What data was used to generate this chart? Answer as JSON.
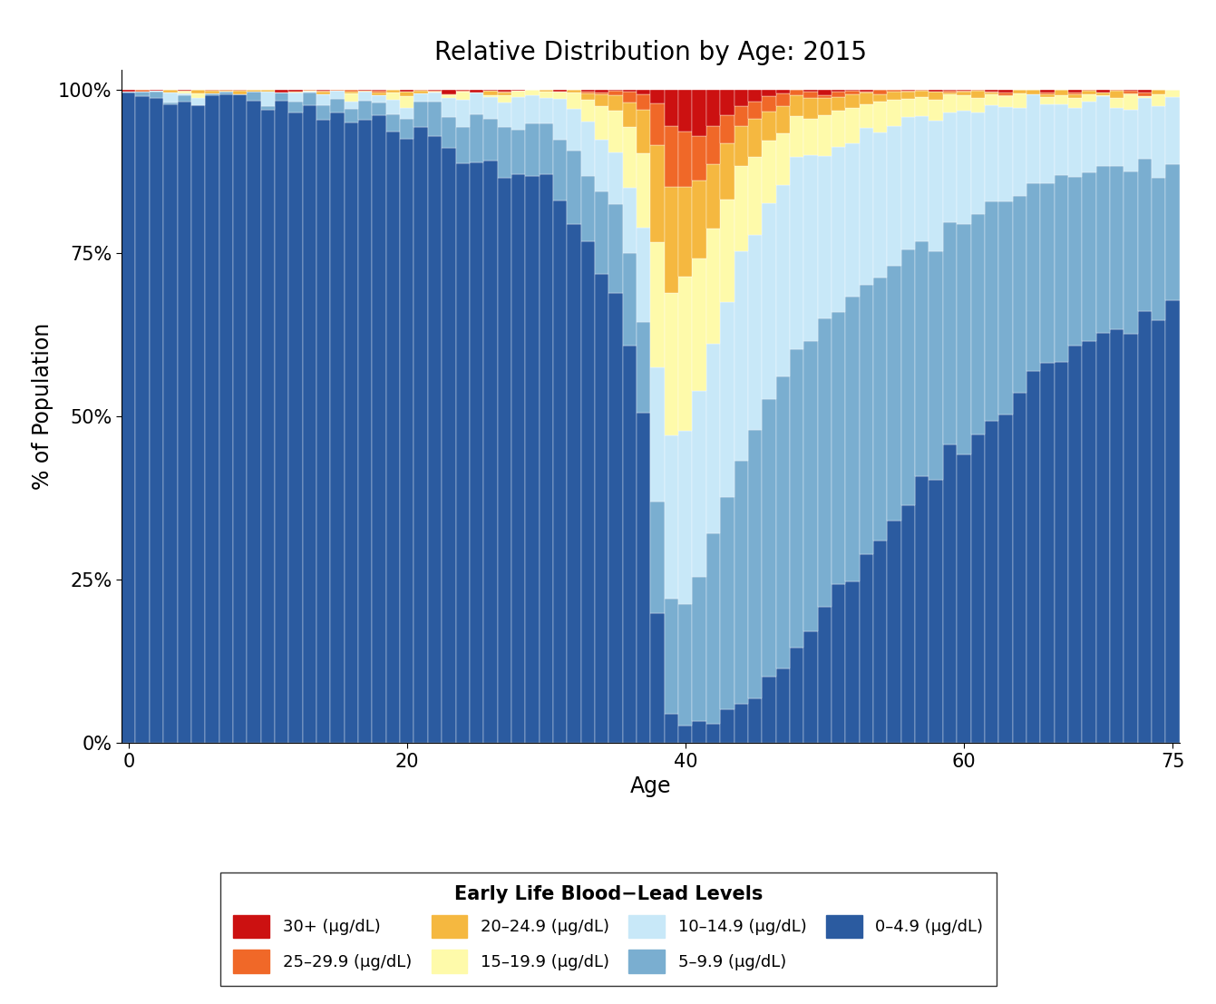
{
  "title": "Relative Distribution by Age: 2015",
  "xlabel": "Age",
  "ylabel": "% of Population",
  "xticks": [
    0,
    20,
    40,
    60,
    75
  ],
  "yticks": [
    0,
    25,
    50,
    75,
    100
  ],
  "colors": {
    "30plus": "#CC1111",
    "25_29": "#F06828",
    "20_24": "#F5B840",
    "15_19": "#FEFAAA",
    "10_14": "#C8E8F8",
    "5_9": "#7AAED0",
    "0_4": "#2B5BA0"
  },
  "legend_labels": [
    "30+ (μg/dL)",
    "25–29.9 (μg/dL)",
    "20–24.9 (μg/dL)",
    "15–19.9 (μg/dL)",
    "10–14.9 (μg/dL)",
    "5–9.9 (μg/dL)",
    "0–4.9 (μg/dL)"
  ],
  "legend_title": "Early Life Blood−Lead Levels"
}
